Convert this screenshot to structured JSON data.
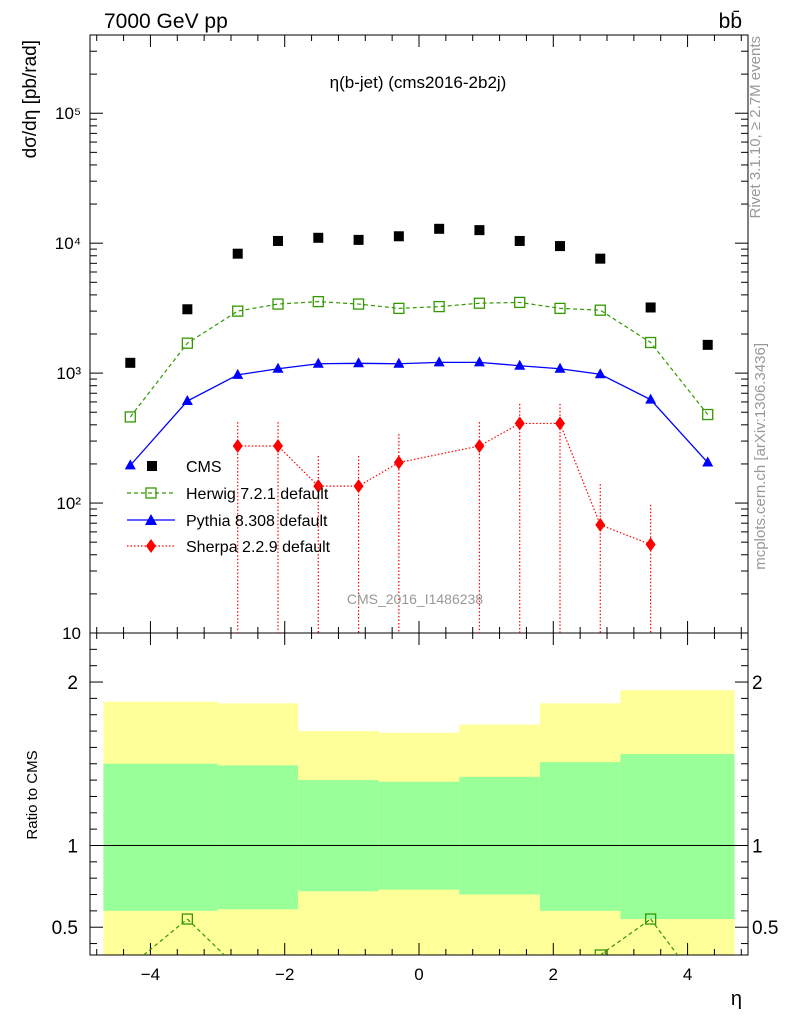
{
  "header": {
    "energy_label": "7000 GeV pp",
    "process_label": "bb̄"
  },
  "plot": {
    "title": "η(b-jet) (cms2016-2b2j)",
    "watermark": "CMS_2016_I1486238",
    "ylabel_main": "dσ/dη [pb/rad]",
    "ylabel_ratio": "Ratio to CMS",
    "xlabel": "η"
  },
  "side": {
    "rivet_label": "Rivet 3.1.10, ≥ 2.7M events",
    "mcplots_label": "mcplots.cern.ch [arXiv:1306.3436]"
  },
  "legend": {
    "cms": "CMS",
    "herwig": "Herwig 7.2.1 default",
    "pythia": "Pythia 8.308 default",
    "sherpa": "Sherpa 2.2.9 default"
  },
  "chart_data": {
    "type": "scatter",
    "x_ticks": [
      -4,
      -2,
      0,
      2,
      4
    ],
    "x_tick_labels": [
      "−4",
      "−2",
      "0",
      "2",
      "4"
    ],
    "main_y_ticks": [
      10,
      100,
      1000,
      10000,
      100000
    ],
    "main_y_tick_labels": [
      "10",
      "10²",
      "10³",
      "10⁴",
      "10⁵"
    ],
    "ratio_y_ticks": [
      0.5,
      1,
      2
    ],
    "ratio_y_tick_labels": [
      "0.5",
      "1",
      "2"
    ],
    "xlim": [
      -4.9,
      4.9
    ],
    "ylim_main": [
      10,
      400000
    ],
    "ylog_main": true,
    "ylim_ratio": [
      0.33,
      2.3
    ],
    "x": [
      -4.3,
      -3.45,
      -2.7,
      -2.1,
      -1.5,
      -0.9,
      -0.3,
      0.3,
      0.9,
      1.5,
      2.1,
      2.7,
      3.45,
      4.3
    ],
    "series": [
      {
        "name": "CMS",
        "key": "cms",
        "color": "#000000",
        "values": [
          1200,
          3100,
          8300,
          10400,
          11000,
          10600,
          11300,
          12900,
          12600,
          10400,
          9500,
          7600,
          3200,
          1650
        ]
      },
      {
        "name": "Herwig 7.2.1 default",
        "key": "herwig",
        "color": "#339900",
        "values": [
          460,
          1700,
          3000,
          3400,
          3550,
          3400,
          3150,
          3250,
          3450,
          3500,
          3150,
          3050,
          1720,
          480
        ]
      },
      {
        "name": "Pythia 8.308 default",
        "key": "pythia",
        "color": "#0000ff",
        "values": [
          195,
          610,
          970,
          1080,
          1180,
          1190,
          1180,
          1210,
          1210,
          1140,
          1080,
          980,
          625,
          205
        ]
      },
      {
        "name": "Sherpa 2.2.9 default",
        "key": "sherpa",
        "color": "#ff0000",
        "x": [
          -2.7,
          -2.1,
          -1.5,
          -0.9,
          -0.3,
          0.9,
          1.5,
          2.1,
          2.7,
          3.45
        ],
        "values": [
          275,
          275,
          135,
          135,
          205,
          275,
          410,
          410,
          68,
          48
        ],
        "err_lo": [
          270,
          270,
          130,
          130,
          200,
          270,
          400,
          400,
          68,
          48
        ],
        "err_hi": [
          420,
          420,
          230,
          230,
          340,
          420,
          580,
          580,
          140,
          97
        ]
      }
    ],
    "ratio_bands": [
      {
        "x_lo": -4.7,
        "x_hi": -3.0,
        "green_lo": 0.6,
        "green_hi": 1.5,
        "yellow_lo": 0.33,
        "yellow_hi": 1.88
      },
      {
        "x_lo": -3.0,
        "x_hi": -1.8,
        "green_lo": 0.61,
        "green_hi": 1.49,
        "yellow_lo": 0.33,
        "yellow_hi": 1.87
      },
      {
        "x_lo": -1.8,
        "x_hi": -0.6,
        "green_lo": 0.72,
        "green_hi": 1.4,
        "yellow_lo": 0.33,
        "yellow_hi": 1.7
      },
      {
        "x_lo": -0.6,
        "x_hi": 0.6,
        "green_lo": 0.73,
        "green_hi": 1.39,
        "yellow_lo": 0.33,
        "yellow_hi": 1.69
      },
      {
        "x_lo": 0.6,
        "x_hi": 1.8,
        "green_lo": 0.7,
        "green_hi": 1.42,
        "yellow_lo": 0.33,
        "yellow_hi": 1.74
      },
      {
        "x_lo": 1.8,
        "x_hi": 3.0,
        "green_lo": 0.6,
        "green_hi": 1.51,
        "yellow_lo": 0.33,
        "yellow_hi": 1.87
      },
      {
        "x_lo": 3.0,
        "x_hi": 4.7,
        "green_lo": 0.55,
        "green_hi": 1.56,
        "yellow_lo": 0.33,
        "yellow_hi": 1.95
      }
    ],
    "ratio_band_colors": {
      "green": "#99ff99",
      "yellow": "#ffff99"
    },
    "ratio_herwig_points": [
      {
        "x": -3.45,
        "y": 0.55
      },
      {
        "x": 2.7,
        "y": 0.33
      },
      {
        "x": 3.45,
        "y": 0.55
      }
    ],
    "ratio_herwig_segments": [
      {
        "x1": -4.1,
        "y1": 0.33,
        "x2": -3.45,
        "y2": 0.55
      },
      {
        "x1": -3.45,
        "y1": 0.55,
        "x2": -2.9,
        "y2": 0.33
      },
      {
        "x1": 2.7,
        "y1": 0.33,
        "x2": 3.45,
        "y2": 0.55
      },
      {
        "x1": 3.45,
        "y1": 0.55,
        "x2": 3.85,
        "y2": 0.33
      }
    ]
  }
}
